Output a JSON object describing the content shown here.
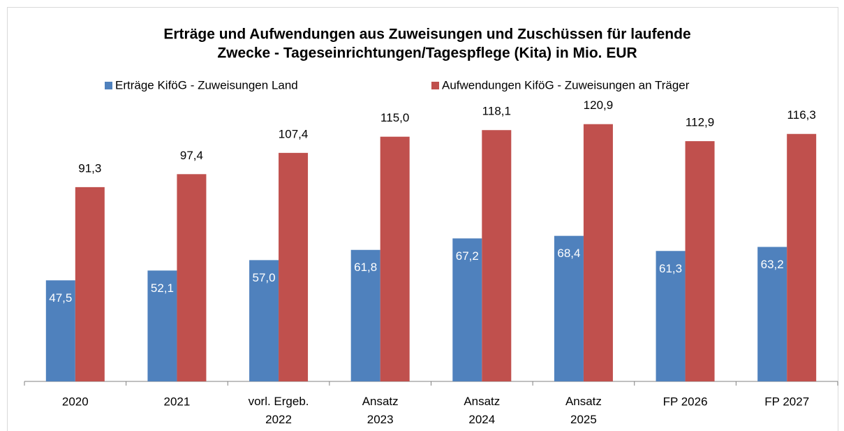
{
  "chart_data": {
    "type": "bar",
    "title": [
      "Erträge und Aufwendungen aus  Zuweisungen und Zuschüssen für laufende",
      "Zwecke - Tageseinrichtungen/Tagespflege (Kita)  in Mio. EUR"
    ],
    "categories": [
      "2020",
      "2021",
      "vorl. Ergeb.\n2022",
      "Ansatz\n2023",
      "Ansatz\n2024",
      "Ansatz\n2025",
      "FP 2026",
      "FP 2027"
    ],
    "series": [
      {
        "name": "Erträge KiföG - Zuweisungen Land",
        "color": "#4f81bd",
        "values": [
          47.5,
          52.1,
          57.0,
          61.8,
          67.2,
          68.4,
          61.3,
          63.2
        ],
        "value_labels": [
          "47,5",
          "52,1",
          "57,0",
          "61,8",
          "67,2",
          "68,4",
          "61,3",
          "63,2"
        ]
      },
      {
        "name": "Aufwendungen KiföG - Zuweisungen an Träger",
        "color": "#c0504d",
        "values": [
          91.3,
          97.4,
          107.4,
          115.0,
          118.1,
          120.9,
          112.9,
          116.3
        ],
        "value_labels": [
          "91,3",
          "97,4",
          "107,4",
          "115,0",
          "118,1",
          "120,9",
          "112,9",
          "116,3"
        ]
      }
    ],
    "ylim": [
      0,
      130
    ],
    "legend": "top"
  }
}
